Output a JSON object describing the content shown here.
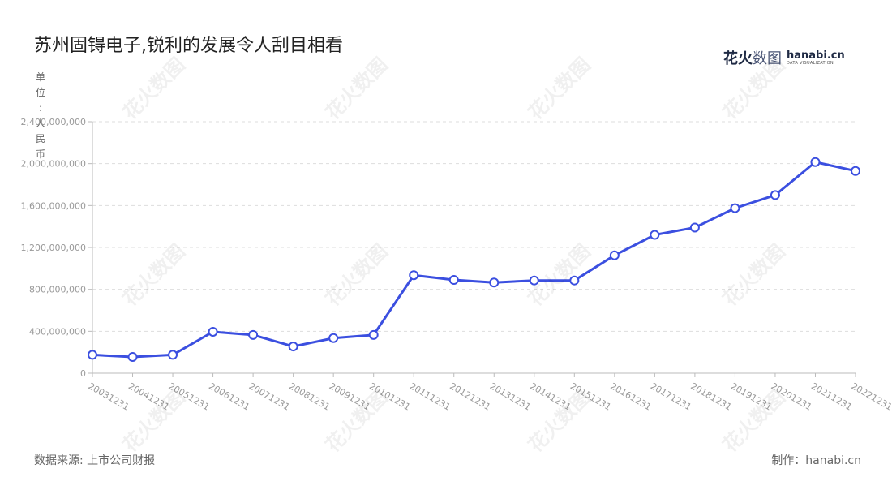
{
  "title": "苏州固锝电子,锐利的发展令人刮目相看",
  "brand": {
    "cn_part1": "花火",
    "cn_part2": "数图",
    "en_main": "hanabi.cn",
    "en_sub": "DATA VISUALIZATION"
  },
  "unit_label": "单位:人民币",
  "footer": {
    "source": "数据来源: 上市公司财报",
    "credit": "制作：hanabi.cn"
  },
  "watermark_text": "花火数图",
  "colors": {
    "line": "#3b4fe0",
    "grid": "#dddddd",
    "axis_text": "#999999"
  },
  "chart_data": {
    "type": "line",
    "categories": [
      "20031231",
      "20041231",
      "20051231",
      "20061231",
      "20071231",
      "20081231",
      "20091231",
      "20101231",
      "20111231",
      "20121231",
      "20131231",
      "20141231",
      "20151231",
      "20161231",
      "20171231",
      "20181231",
      "20191231",
      "20201231",
      "20211231",
      "20221231"
    ],
    "series": [
      {
        "values": [
          175000000,
          155000000,
          175000000,
          395000000,
          365000000,
          255000000,
          335000000,
          365000000,
          935000000,
          890000000,
          865000000,
          885000000,
          885000000,
          1125000000,
          1320000000,
          1390000000,
          1575000000,
          1700000000,
          2015000000,
          1930000000
        ]
      }
    ],
    "y_ticks": [
      "0",
      "400,000,000",
      "800,000,000",
      "1,200,000,000",
      "1,600,000,000",
      "2,000,000,000",
      "2,400,000,000"
    ],
    "ylim": [
      0,
      2400000000
    ],
    "grid": true,
    "legend": "none"
  }
}
